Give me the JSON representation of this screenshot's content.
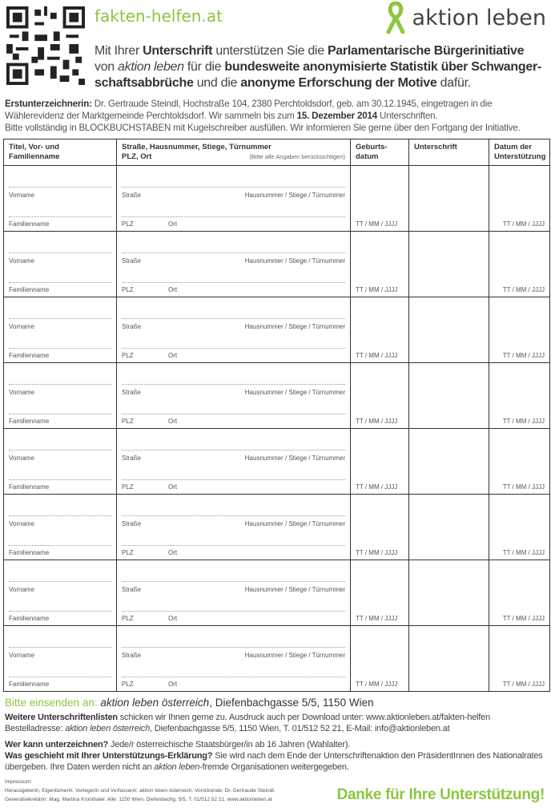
{
  "header": {
    "website": "fakten-helfen.at",
    "logo_text": "aktion leben",
    "brand_color": "#8cc63f",
    "intro": {
      "p1": "Mit Ihrer ",
      "b1": "Unterschrift",
      "p2": " unterstützen Sie die ",
      "b2": "Parlamentarische Bürgerinitiative",
      "p3": " von ",
      "i1": "aktion leben",
      "p4": " für die ",
      "b3": "bundesweite anonymisierte Statistik über Schwanger­schaftsabbrüche",
      "p5": " und die ",
      "b4": "anonyme Erforschung der Motive",
      "p6": " dafür."
    }
  },
  "initiator": {
    "label": "Erstunterzeichnerin:",
    "text1": " Dr. Gertraude Steindl, Hochstraße 104, 2380 Perchtoldsdorf, geb. am 30.12.1945, eingetragen in die Wählerevidenz der Marktgemeinde Perchtoldsdorf. Wir sammeln bis zum ",
    "deadline": "15. Dezember 2014",
    "text2": " Unterschriften.",
    "instructions": "Bitte vollständig in BLOCKBUCHSTABEN mit Kugelschreiber ausfüllen. Wir informieren Sie gerne über den Fortgang der Initiative."
  },
  "table": {
    "headers": {
      "name": "Titel, Vor- und Familienname",
      "address": "Straße, Hausnummer, Stiege, Türnummer",
      "address2": "PLZ, Ort",
      "address_hint": "(Bitte alle Angaben berücksichtigen)",
      "birth": "Geburts-datum",
      "signature": "Unterschrift",
      "date": "Datum der Unterstützung"
    },
    "labels": {
      "first_name": "Vorname",
      "last_name": "Familienname",
      "street": "Straße",
      "house": "Hausnummer / Stiege / Türnummer",
      "zip": "PLZ",
      "city": "Ort",
      "date_format": "TT / MM / JJJJ"
    }
  },
  "footer": {
    "send_label": "Bitte einsenden an:",
    "send_org": "aktion leben österreich",
    "send_addr": ", Diefenbachgasse 5/5, 1150 Wien",
    "more_b": "Weitere Unterschriftenlisten",
    "more": " schicken wir Ihnen gerne zu. Ausdruck auch per Download unter: www.aktionleben.at/fakten-helfen",
    "order1": "Bestelladresse: ",
    "order_org": "aktion leben österreich",
    "order2": ", Diefenbachgasse 5/5, 1150 Wien, T. 01/512 52 21, E-Mail: info@aktionleben.at",
    "who_b": "Wer kann unterzeichnen?",
    "who": " Jede/r österreichische Staatsbürger/in ab 16 Jahren (Wahlalter).",
    "what_b": "Was geschieht mit Ihrer Unterstützungs-Erklärung?",
    "what1": " Sie wird nach dem Ende der Unterschriftenaktion den PräsidentInnen des Nationalrates übergeben. Ihre Daten werden nicht an ",
    "what_org": "aktion leben",
    "what2": "-fremde Organisationen weitergegeben.",
    "imprint_title": "Impressum:",
    "imprint1": "Herausgeberin, Eigentümerin, Verlegerin und Verfasserin: aktion leben österreich. Vorsitzende: Dr. Gertraude Steindl.",
    "imprint2": "Generalsekretärin: Mag. Martina Kronthaler. Alle: 1150 Wien, Diefenbachg. 5/5, T. 01/512 52 21, www.aktionleben.at",
    "thanks": "Danke für Ihre Unterstützung!"
  }
}
